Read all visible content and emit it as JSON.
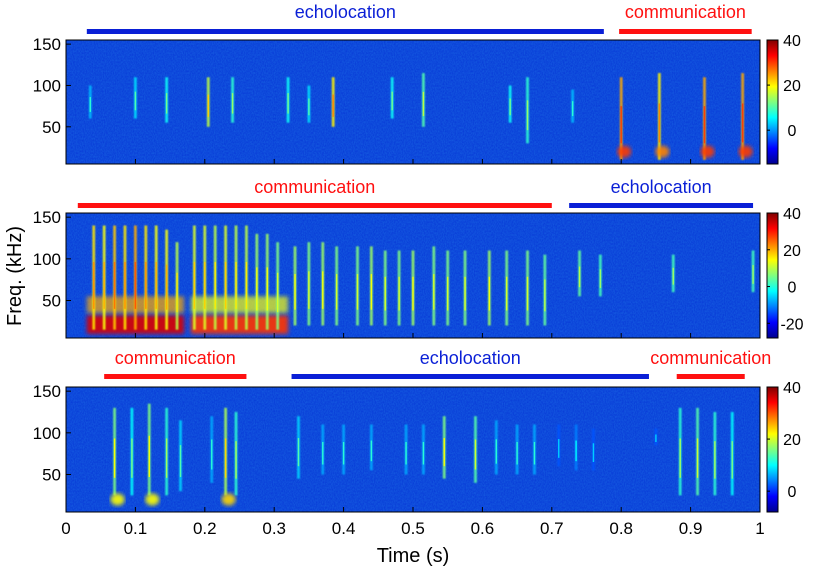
{
  "figure": {
    "xlabel": "Time (s)",
    "ylabel": "Freq. (kHz)"
  },
  "colors": {
    "echolocation": "#0a1fd6",
    "communication": "#ff1010",
    "spectrogram_background": "#0a3fd8"
  },
  "chart_data": [
    {
      "type": "heatmap",
      "title": "",
      "xlabel": "",
      "ylabel": "",
      "xlim": [
        0,
        1
      ],
      "ylim": [
        5,
        155
      ],
      "yticks": [
        50,
        100,
        150
      ],
      "xticks": [],
      "colorbar": {
        "ticks": [
          0,
          20,
          40
        ],
        "range": [
          -15,
          40
        ]
      },
      "segments": [
        {
          "label": "echolocation",
          "start": 0.03,
          "end": 0.775,
          "kind": "echolocation"
        },
        {
          "label": "communication",
          "start": 0.797,
          "end": 0.988,
          "kind": "communication"
        }
      ],
      "calls": [
        {
          "t": 0.035,
          "fmin": 60,
          "fmax": 100,
          "intensity": 8
        },
        {
          "t": 0.1,
          "fmin": 60,
          "fmax": 110,
          "intensity": 10
        },
        {
          "t": 0.145,
          "fmin": 55,
          "fmax": 110,
          "intensity": 12
        },
        {
          "t": 0.205,
          "fmin": 50,
          "fmax": 110,
          "intensity": 22
        },
        {
          "t": 0.24,
          "fmin": 55,
          "fmax": 110,
          "intensity": 14
        },
        {
          "t": 0.32,
          "fmin": 55,
          "fmax": 110,
          "intensity": 12
        },
        {
          "t": 0.35,
          "fmin": 55,
          "fmax": 100,
          "intensity": 10
        },
        {
          "t": 0.385,
          "fmin": 50,
          "fmax": 110,
          "intensity": 26
        },
        {
          "t": 0.47,
          "fmin": 60,
          "fmax": 110,
          "intensity": 12
        },
        {
          "t": 0.515,
          "fmin": 50,
          "fmax": 115,
          "intensity": 16
        },
        {
          "t": 0.64,
          "fmin": 55,
          "fmax": 100,
          "intensity": 12
        },
        {
          "t": 0.665,
          "fmin": 30,
          "fmax": 110,
          "intensity": 14
        },
        {
          "t": 0.73,
          "fmin": 55,
          "fmax": 95,
          "intensity": 8
        },
        {
          "t": 0.8,
          "fmin": 10,
          "fmax": 110,
          "intensity": 30,
          "low_burst": true
        },
        {
          "t": 0.855,
          "fmin": 10,
          "fmax": 115,
          "intensity": 26,
          "low_burst": true
        },
        {
          "t": 0.92,
          "fmin": 10,
          "fmax": 110,
          "intensity": 30,
          "low_burst": true
        },
        {
          "t": 0.975,
          "fmin": 10,
          "fmax": 115,
          "intensity": 30,
          "low_burst": true
        }
      ]
    },
    {
      "type": "heatmap",
      "title": "",
      "xlabel": "",
      "ylabel": "Freq. (kHz)",
      "xlim": [
        0,
        1
      ],
      "ylim": [
        5,
        155
      ],
      "yticks": [
        50,
        100,
        150
      ],
      "xticks": [],
      "colorbar": {
        "ticks": [
          -20,
          0,
          20,
          40
        ],
        "range": [
          -28,
          40
        ]
      },
      "segments": [
        {
          "label": "communication",
          "start": 0.017,
          "end": 0.7,
          "kind": "communication"
        },
        {
          "label": "echolocation",
          "start": 0.725,
          "end": 0.99,
          "kind": "echolocation"
        }
      ],
      "bursts": [
        {
          "start": 0.03,
          "end": 0.17,
          "intensity": 34
        },
        {
          "start": 0.18,
          "end": 0.32,
          "intensity": 28
        }
      ],
      "calls": [
        {
          "t": 0.04,
          "fmin": 15,
          "fmax": 140,
          "intensity": 22
        },
        {
          "t": 0.055,
          "fmin": 15,
          "fmax": 140,
          "intensity": 20
        },
        {
          "t": 0.07,
          "fmin": 15,
          "fmax": 140,
          "intensity": 24
        },
        {
          "t": 0.085,
          "fmin": 15,
          "fmax": 140,
          "intensity": 22
        },
        {
          "t": 0.1,
          "fmin": 15,
          "fmax": 140,
          "intensity": 26
        },
        {
          "t": 0.115,
          "fmin": 15,
          "fmax": 140,
          "intensity": 22
        },
        {
          "t": 0.13,
          "fmin": 15,
          "fmax": 140,
          "intensity": 20
        },
        {
          "t": 0.145,
          "fmin": 15,
          "fmax": 135,
          "intensity": 20
        },
        {
          "t": 0.16,
          "fmin": 15,
          "fmax": 120,
          "intensity": 16
        },
        {
          "t": 0.185,
          "fmin": 15,
          "fmax": 140,
          "intensity": 18
        },
        {
          "t": 0.2,
          "fmin": 15,
          "fmax": 140,
          "intensity": 18
        },
        {
          "t": 0.215,
          "fmin": 15,
          "fmax": 140,
          "intensity": 16
        },
        {
          "t": 0.23,
          "fmin": 15,
          "fmax": 140,
          "intensity": 18
        },
        {
          "t": 0.245,
          "fmin": 15,
          "fmax": 140,
          "intensity": 16
        },
        {
          "t": 0.26,
          "fmin": 15,
          "fmax": 140,
          "intensity": 16
        },
        {
          "t": 0.275,
          "fmin": 15,
          "fmax": 130,
          "intensity": 14
        },
        {
          "t": 0.29,
          "fmin": 15,
          "fmax": 130,
          "intensity": 14
        },
        {
          "t": 0.305,
          "fmin": 15,
          "fmax": 120,
          "intensity": 12
        },
        {
          "t": 0.33,
          "fmin": 20,
          "fmax": 115,
          "intensity": 14
        },
        {
          "t": 0.35,
          "fmin": 20,
          "fmax": 120,
          "intensity": 12
        },
        {
          "t": 0.37,
          "fmin": 20,
          "fmax": 120,
          "intensity": 14
        },
        {
          "t": 0.39,
          "fmin": 20,
          "fmax": 115,
          "intensity": 12
        },
        {
          "t": 0.42,
          "fmin": 20,
          "fmax": 115,
          "intensity": 12
        },
        {
          "t": 0.44,
          "fmin": 20,
          "fmax": 115,
          "intensity": 14
        },
        {
          "t": 0.46,
          "fmin": 20,
          "fmax": 110,
          "intensity": 12
        },
        {
          "t": 0.48,
          "fmin": 20,
          "fmax": 110,
          "intensity": 12
        },
        {
          "t": 0.5,
          "fmin": 20,
          "fmax": 110,
          "intensity": 14
        },
        {
          "t": 0.53,
          "fmin": 20,
          "fmax": 115,
          "intensity": 12
        },
        {
          "t": 0.55,
          "fmin": 20,
          "fmax": 110,
          "intensity": 12
        },
        {
          "t": 0.575,
          "fmin": 20,
          "fmax": 110,
          "intensity": 12
        },
        {
          "t": 0.61,
          "fmin": 20,
          "fmax": 110,
          "intensity": 14
        },
        {
          "t": 0.635,
          "fmin": 20,
          "fmax": 110,
          "intensity": 12
        },
        {
          "t": 0.665,
          "fmin": 20,
          "fmax": 110,
          "intensity": 12
        },
        {
          "t": 0.69,
          "fmin": 20,
          "fmax": 105,
          "intensity": 10
        },
        {
          "t": 0.74,
          "fmin": 55,
          "fmax": 110,
          "intensity": 10
        },
        {
          "t": 0.77,
          "fmin": 55,
          "fmax": 105,
          "intensity": 8
        },
        {
          "t": 0.875,
          "fmin": 60,
          "fmax": 105,
          "intensity": 8
        },
        {
          "t": 0.99,
          "fmin": 60,
          "fmax": 110,
          "intensity": 8
        }
      ]
    },
    {
      "type": "heatmap",
      "title": "",
      "xlabel": "Time (s)",
      "ylabel": "",
      "xlim": [
        0,
        1
      ],
      "ylim": [
        5,
        155
      ],
      "yticks": [
        50,
        100,
        150
      ],
      "xticks": [
        0,
        0.1,
        0.2,
        0.3,
        0.4,
        0.5,
        0.6,
        0.7,
        0.8,
        0.9,
        1
      ],
      "xticklabels": [
        "0",
        "0.1",
        "0.2",
        "0.3",
        "0.4",
        "0.5",
        "0.6",
        "0.7",
        "0.8",
        "0.9",
        "1"
      ],
      "colorbar": {
        "ticks": [
          0,
          20,
          40
        ],
        "range": [
          -8,
          40
        ]
      },
      "segments": [
        {
          "label": "communication",
          "start": 0.055,
          "end": 0.26,
          "kind": "communication"
        },
        {
          "label": "echolocation",
          "start": 0.325,
          "end": 0.84,
          "kind": "echolocation"
        },
        {
          "label": "communication",
          "start": 0.88,
          "end": 0.978,
          "kind": "communication"
        }
      ],
      "calls": [
        {
          "t": 0.07,
          "fmin": 25,
          "fmax": 130,
          "intensity": 22,
          "low_burst": true
        },
        {
          "t": 0.095,
          "fmin": 25,
          "fmax": 130,
          "intensity": 16
        },
        {
          "t": 0.12,
          "fmin": 25,
          "fmax": 135,
          "intensity": 22,
          "low_burst": true
        },
        {
          "t": 0.145,
          "fmin": 25,
          "fmax": 130,
          "intensity": 18
        },
        {
          "t": 0.165,
          "fmin": 30,
          "fmax": 115,
          "intensity": 14
        },
        {
          "t": 0.21,
          "fmin": 40,
          "fmax": 120,
          "intensity": 12
        },
        {
          "t": 0.23,
          "fmin": 25,
          "fmax": 130,
          "intensity": 24,
          "low_burst": true
        },
        {
          "t": 0.245,
          "fmin": 25,
          "fmax": 125,
          "intensity": 18
        },
        {
          "t": 0.335,
          "fmin": 45,
          "fmax": 120,
          "intensity": 14
        },
        {
          "t": 0.37,
          "fmin": 50,
          "fmax": 110,
          "intensity": 12
        },
        {
          "t": 0.4,
          "fmin": 50,
          "fmax": 110,
          "intensity": 12
        },
        {
          "t": 0.44,
          "fmin": 55,
          "fmax": 110,
          "intensity": 12
        },
        {
          "t": 0.49,
          "fmin": 50,
          "fmax": 110,
          "intensity": 12
        },
        {
          "t": 0.515,
          "fmin": 50,
          "fmax": 110,
          "intensity": 12
        },
        {
          "t": 0.545,
          "fmin": 45,
          "fmax": 120,
          "intensity": 22
        },
        {
          "t": 0.59,
          "fmin": 40,
          "fmax": 120,
          "intensity": 20
        },
        {
          "t": 0.62,
          "fmin": 50,
          "fmax": 115,
          "intensity": 12
        },
        {
          "t": 0.65,
          "fmin": 50,
          "fmax": 110,
          "intensity": 12
        },
        {
          "t": 0.675,
          "fmin": 50,
          "fmax": 110,
          "intensity": 12
        },
        {
          "t": 0.71,
          "fmin": 60,
          "fmax": 110,
          "intensity": 8
        },
        {
          "t": 0.735,
          "fmin": 55,
          "fmax": 110,
          "intensity": 10
        },
        {
          "t": 0.76,
          "fmin": 55,
          "fmax": 105,
          "intensity": 8
        },
        {
          "t": 0.85,
          "fmin": 85,
          "fmax": 105,
          "intensity": 8
        },
        {
          "t": 0.885,
          "fmin": 25,
          "fmax": 130,
          "intensity": 18
        },
        {
          "t": 0.91,
          "fmin": 25,
          "fmax": 130,
          "intensity": 20
        },
        {
          "t": 0.935,
          "fmin": 25,
          "fmax": 125,
          "intensity": 18
        },
        {
          "t": 0.96,
          "fmin": 25,
          "fmax": 125,
          "intensity": 16
        }
      ]
    }
  ]
}
